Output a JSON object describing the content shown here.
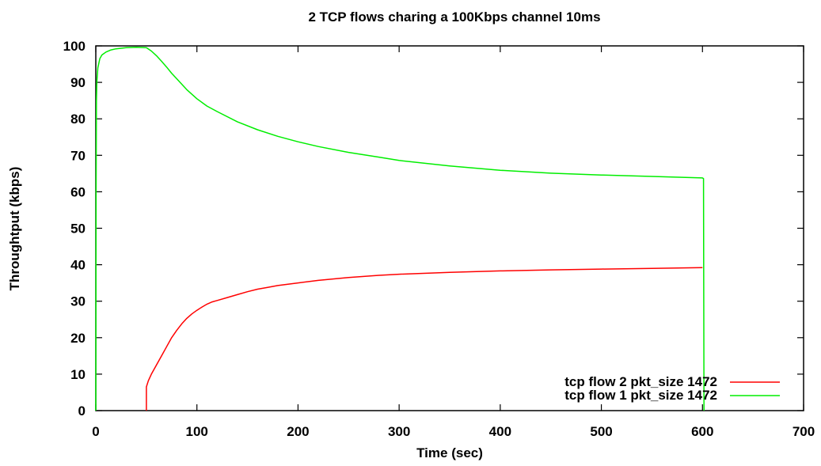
{
  "chart_data": {
    "type": "line",
    "title": "2 TCP flows charing a 100Kbps channel 10ms",
    "xlabel": "Time (sec)",
    "ylabel": "Throughtput (kbps)",
    "xlim": [
      0,
      700
    ],
    "ylim": [
      0,
      100
    ],
    "x_ticks": [
      "0",
      "100",
      "200",
      "300",
      "400",
      "500",
      "600",
      "700"
    ],
    "y_ticks": [
      "0",
      "10",
      "20",
      "30",
      "40",
      "50",
      "60",
      "70",
      "80",
      "90",
      "100"
    ],
    "grid": false,
    "legend_position": "bottom-right",
    "series": [
      {
        "name": "tcp flow 2 pkt_size 1472",
        "color": "#ff0000",
        "x": [
          50,
          50,
          52,
          55,
          60,
          65,
          70,
          75,
          80,
          85,
          90,
          95,
          100,
          105,
          110,
          115,
          120,
          130,
          140,
          150,
          160,
          170,
          180,
          200,
          220,
          250,
          280,
          300,
          350,
          400,
          450,
          500,
          550,
          600
        ],
        "y": [
          0,
          6.5,
          8.2,
          10,
          12.5,
          15,
          17.5,
          20,
          22,
          23.8,
          25.3,
          26.5,
          27.5,
          28.4,
          29.2,
          29.8,
          30.2,
          31,
          31.8,
          32.6,
          33.3,
          33.8,
          34.3,
          35,
          35.7,
          36.5,
          37.1,
          37.4,
          37.9,
          38.3,
          38.6,
          38.8,
          39,
          39.2
        ]
      },
      {
        "name": "tcp flow 1 pkt_size 1472",
        "color": "#00ee00",
        "x": [
          0,
          0.3,
          0.6,
          1,
          2,
          4,
          6,
          10,
          15,
          20,
          30,
          40,
          50,
          55,
          60,
          65,
          70,
          75,
          80,
          90,
          100,
          110,
          120,
          140,
          160,
          180,
          200,
          220,
          250,
          280,
          300,
          350,
          400,
          450,
          500,
          550,
          600,
          601,
          601.5
        ],
        "y": [
          0,
          60,
          85,
          90,
          94,
          96.5,
          97.5,
          98.3,
          98.9,
          99.2,
          99.5,
          99.6,
          99.5,
          98.6,
          97.3,
          95.8,
          94.2,
          92.5,
          91,
          88,
          85.5,
          83.5,
          82,
          79.2,
          77,
          75.2,
          73.7,
          72.4,
          70.8,
          69.5,
          68.6,
          67.1,
          65.9,
          65.1,
          64.6,
          64.2,
          63.8,
          63.6,
          0
        ]
      }
    ]
  }
}
